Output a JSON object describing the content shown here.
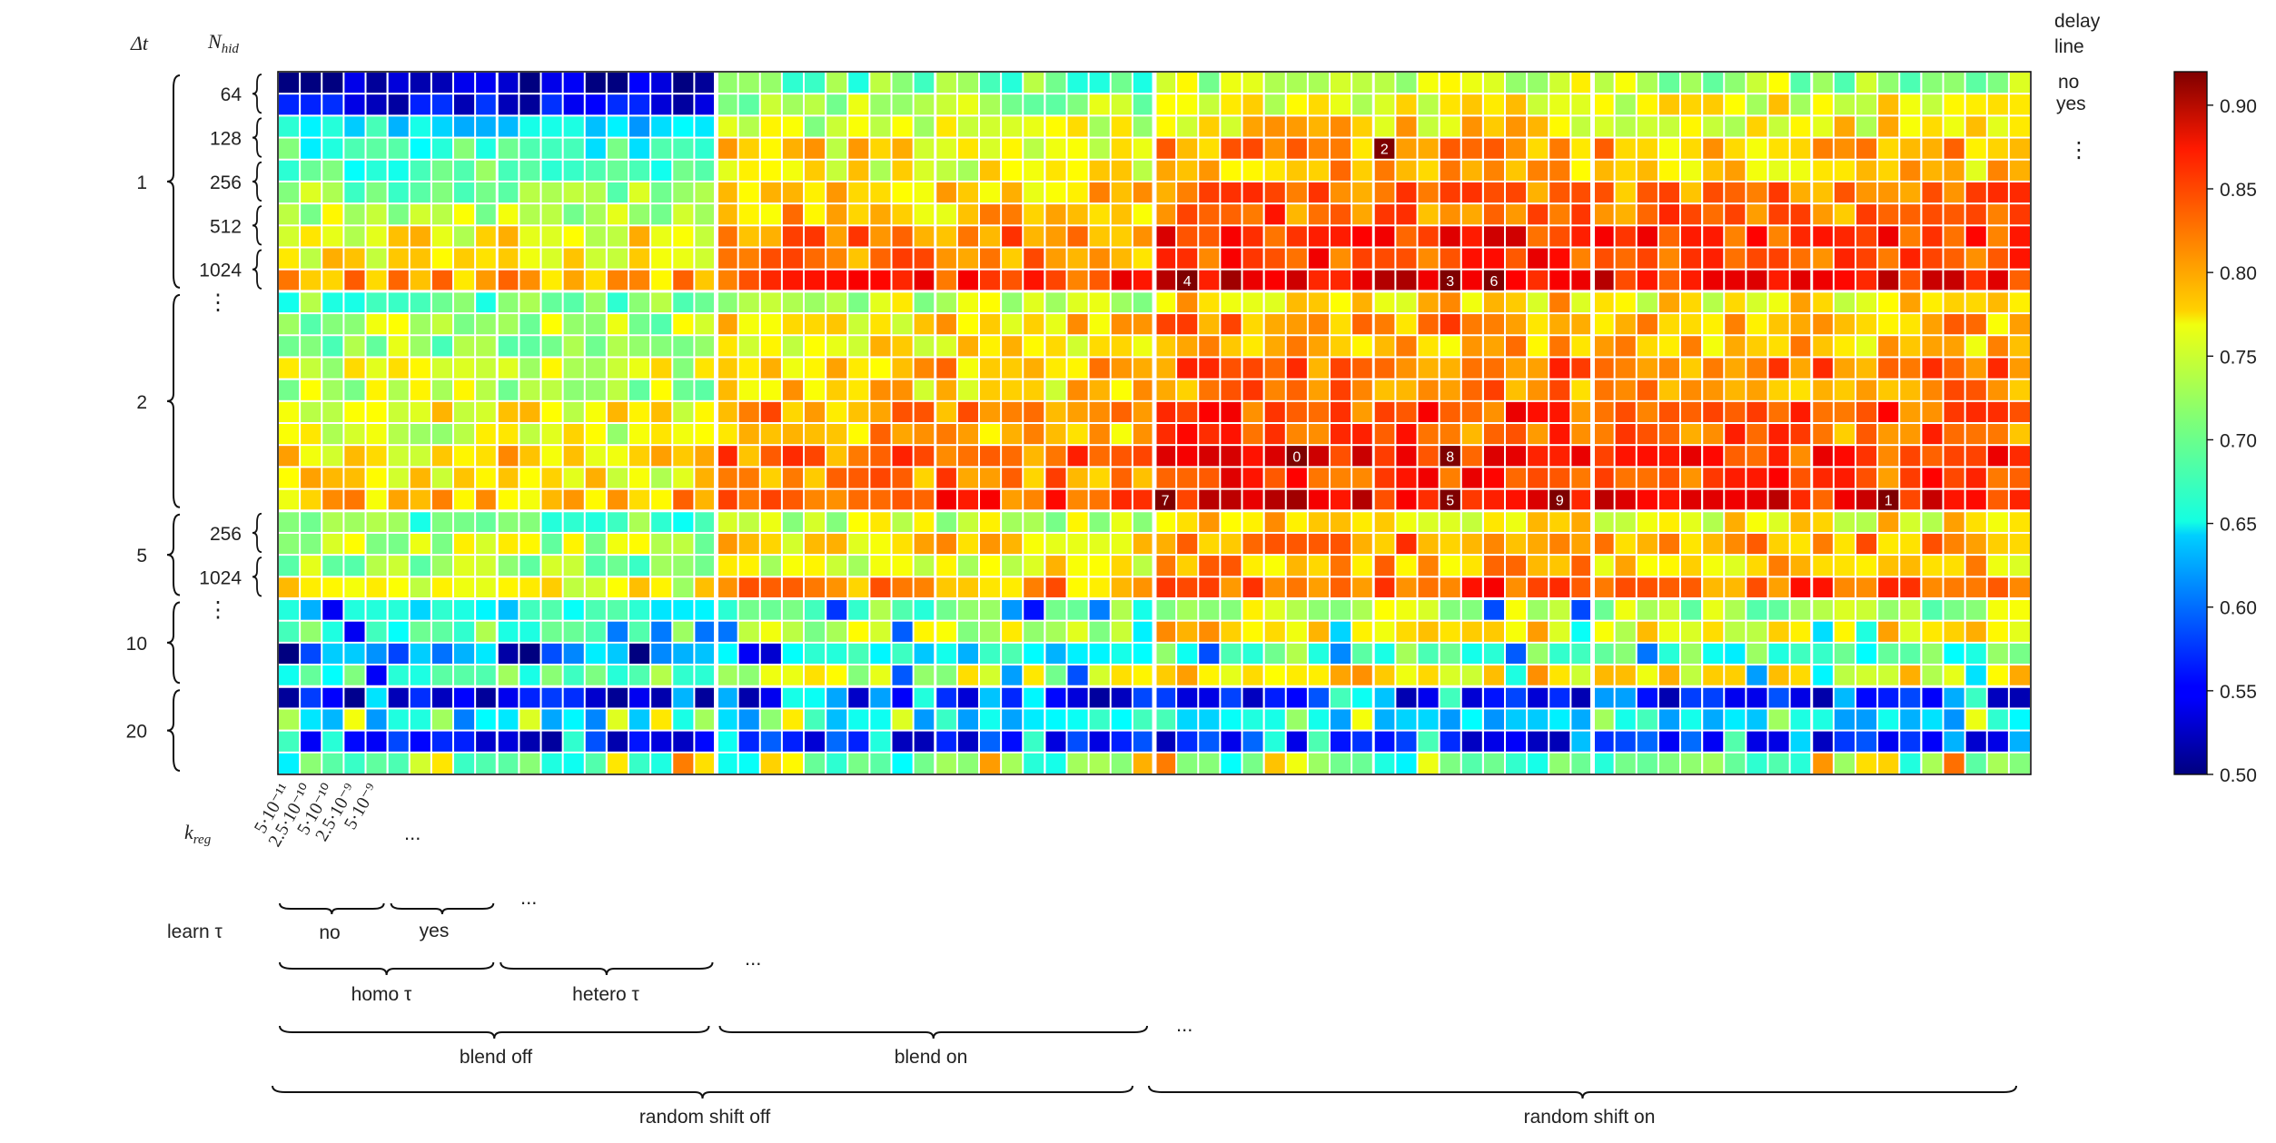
{
  "chart_data": {
    "type": "heatmap",
    "rows": 32,
    "cols": 80,
    "colorbar": {
      "colormap": "jet",
      "vmin": 0.5,
      "vmax": 0.92,
      "ticks": [
        "0.50",
        "0.55",
        "0.60",
        "0.65",
        "0.70",
        "0.75",
        "0.80",
        "0.85",
        "0.90"
      ]
    },
    "row_header": {
      "dt_label": "Δt",
      "nhid_label": "N_hid",
      "delay_line_label": [
        "delay",
        "line"
      ],
      "delay_values": [
        "no",
        "yes"
      ],
      "ellipsis": "⋮"
    },
    "dt_groups": [
      {
        "label": "1",
        "row_start": 0,
        "row_end": 9
      },
      {
        "label": "2",
        "row_start": 10,
        "row_end": 19
      },
      {
        "label": "5",
        "row_start": 20,
        "row_end": 23
      },
      {
        "label": "10",
        "row_start": 24,
        "row_end": 27
      },
      {
        "label": "20",
        "row_start": 28,
        "row_end": 31
      }
    ],
    "nhid_labels": [
      {
        "label": "64",
        "row_start": 0
      },
      {
        "label": "128",
        "row_start": 2
      },
      {
        "label": "256",
        "row_start": 4
      },
      {
        "label": "512",
        "row_start": 6
      },
      {
        "label": "1024",
        "row_start": 8
      },
      {
        "label": "256",
        "row_start": 20
      },
      {
        "label": "1024",
        "row_start": 22
      }
    ],
    "nhid_ellipses": [
      10,
      24
    ],
    "col_header": {
      "kreg_label": "k_reg",
      "kreg_values": [
        "5·10⁻¹¹",
        "2.5·10⁻¹⁰",
        "5·10⁻¹⁰",
        "2.5·10⁻⁹",
        "5·10⁻⁹"
      ],
      "learn_tau_label": "learn τ",
      "learn_tau_values": [
        "no",
        "yes"
      ],
      "tau_mode_values": [
        "homo τ",
        "hetero τ"
      ],
      "blend_values": [
        "blend off",
        "blend on"
      ],
      "shift_values": [
        "random shift off",
        "random shift on"
      ],
      "ellipsis": "..."
    },
    "best_ranks": [
      {
        "rank": "0",
        "row": 17,
        "col": 46
      },
      {
        "rank": "1",
        "row": 19,
        "col": 73
      },
      {
        "rank": "2",
        "row": 3,
        "col": 50
      },
      {
        "rank": "3",
        "row": 9,
        "col": 53
      },
      {
        "rank": "4",
        "row": 9,
        "col": 41
      },
      {
        "rank": "5",
        "row": 19,
        "col": 53
      },
      {
        "rank": "6",
        "row": 9,
        "col": 55
      },
      {
        "rank": "7",
        "row": 19,
        "col": 40
      },
      {
        "rank": "8",
        "row": 17,
        "col": 53
      },
      {
        "rank": "9",
        "row": 19,
        "col": 58
      }
    ]
  }
}
